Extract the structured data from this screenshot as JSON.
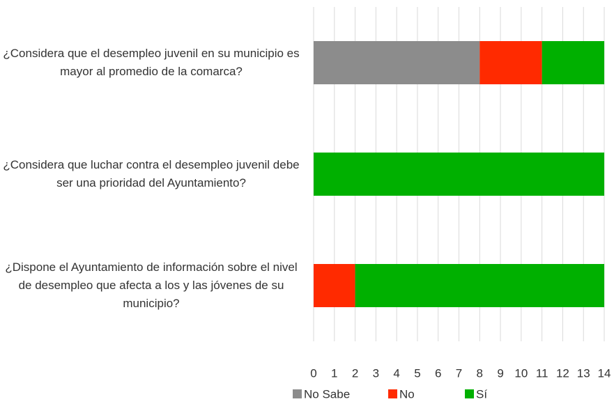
{
  "chart_data": {
    "type": "stacked_barh",
    "categories": [
      "¿Considera que el desempleo juvenil en su municipio es mayor al promedio de la comarca?",
      "¿Considera que luchar contra el desempleo juvenil debe ser una prioridad del Ayuntamiento?",
      "¿Dispone el Ayuntamiento de información sobre el nivel de desempleo que afecta a los y las jóvenes de su municipio?"
    ],
    "series": [
      {
        "name": "No Sabe",
        "color": "#8c8c8c",
        "values": [
          8,
          0,
          0
        ]
      },
      {
        "name": "No",
        "color": "#ff2a00",
        "values": [
          3,
          0,
          2
        ]
      },
      {
        "name": "Sí",
        "color": "#00b000",
        "values": [
          3,
          14,
          12
        ]
      }
    ],
    "xlim": [
      0,
      14
    ],
    "xticks": [
      0,
      1,
      2,
      3,
      4,
      5,
      6,
      7,
      8,
      9,
      10,
      11,
      12,
      13,
      14
    ],
    "grid": true
  }
}
